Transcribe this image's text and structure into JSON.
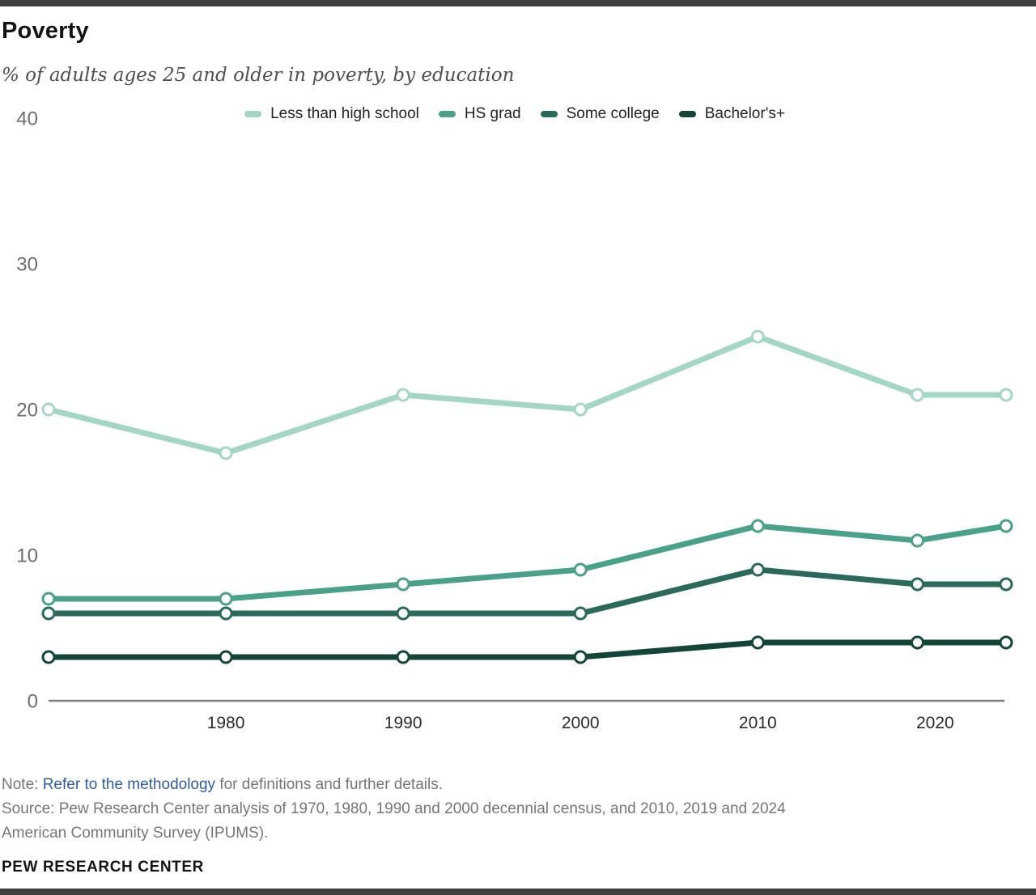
{
  "header": {
    "title": "Poverty",
    "subtitle": "% of adults ages 25 and older in poverty, by education"
  },
  "chart_data": {
    "type": "line",
    "x": [
      1970,
      1980,
      1990,
      2000,
      2010,
      2019,
      2024
    ],
    "series": [
      {
        "name": "Less than high school",
        "color": "#a4d7c3",
        "values": [
          20,
          17,
          21,
          20,
          25,
          21,
          21
        ]
      },
      {
        "name": "HS grad",
        "color": "#4aa18a",
        "values": [
          7,
          7,
          8,
          9,
          12,
          11,
          12
        ]
      },
      {
        "name": "Some college",
        "color": "#296a5a",
        "values": [
          6,
          6,
          6,
          6,
          9,
          8,
          8
        ]
      },
      {
        "name": "Bachelor's+",
        "color": "#144539",
        "values": [
          3,
          3,
          3,
          3,
          4,
          4,
          4
        ]
      }
    ],
    "title": "Poverty",
    "subtitle": "% of adults ages 25 and older in poverty, by education",
    "xlabel": "",
    "ylabel": "",
    "ylim": [
      0,
      40
    ],
    "xlim": [
      1970,
      2024
    ],
    "y_ticks": [
      0,
      10,
      20,
      30,
      40
    ],
    "x_ticks": [
      1980,
      1990,
      2000,
      2010,
      2020
    ],
    "grid": false,
    "legend_position": "top-center",
    "axis_color": "#7f7f7f",
    "y_tick_color": "#6f6f6f",
    "x_tick_color": "#2b2b2b"
  },
  "footer": {
    "note_prefix": "Note: ",
    "note_link": "Refer to the methodology",
    "note_suffix": " for definitions and further details.",
    "link_color": "#315c9e",
    "source": "Source: Pew Research Center analysis of 1970, 1980, 1990 and 2000 decennial census, and 2010, 2019 and 2024 American Community Survey (IPUMS).",
    "brand": "PEW RESEARCH CENTER"
  }
}
